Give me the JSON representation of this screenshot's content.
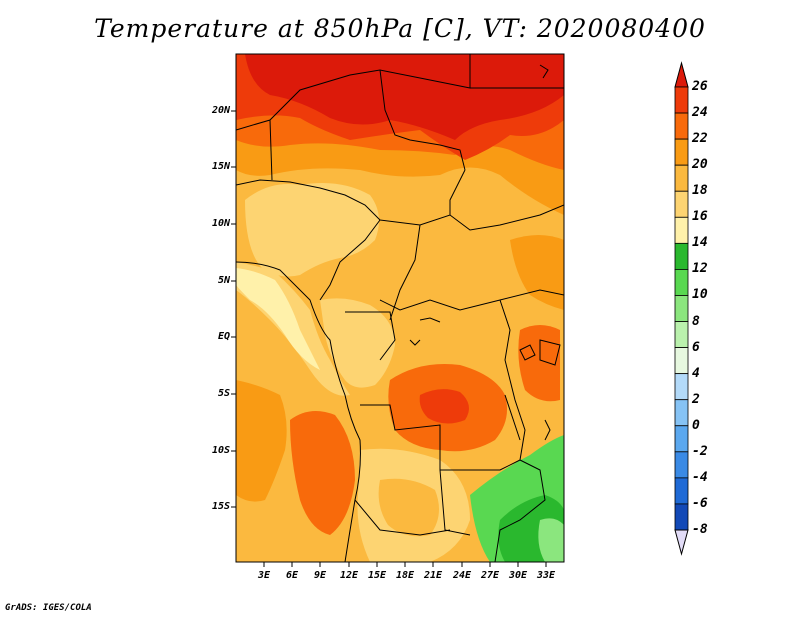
{
  "title": "Temperature at 850hPa [C], VT: 2020080400",
  "credit": "GrADS: IGES/COLA",
  "lat_labels": [
    "20N",
    "15N",
    "10N",
    "5N",
    "EQ",
    "5S",
    "10S",
    "15S"
  ],
  "lon_labels": [
    "3E",
    "6E",
    "9E",
    "12E",
    "15E",
    "18E",
    "21E",
    "24E",
    "27E",
    "30E",
    "33E"
  ],
  "colorbar": {
    "labels": [
      "26",
      "24",
      "22",
      "20",
      "18",
      "16",
      "14",
      "12",
      "10",
      "8",
      "6",
      "4",
      "2",
      "0",
      "-2",
      "-4",
      "-6",
      "-8"
    ],
    "colors": [
      "#dc1a0a",
      "#ee3b0a",
      "#f86a0b",
      "#f99b14",
      "#fbb93f",
      "#fdd472",
      "#fff1aa",
      "#2ab82e",
      "#59d851",
      "#8be67e",
      "#baf1ad",
      "#e7f8e0",
      "#b3daf9",
      "#86c3f5",
      "#5ba8ef",
      "#3a8ae5",
      "#1f6ad6",
      "#1249b7",
      "#0a2891",
      "#06076a",
      "#e2dcf7"
    ],
    "top_arrow_color": "#dc1a0a",
    "bottom_arrow_color": "#e2dcf7"
  }
}
